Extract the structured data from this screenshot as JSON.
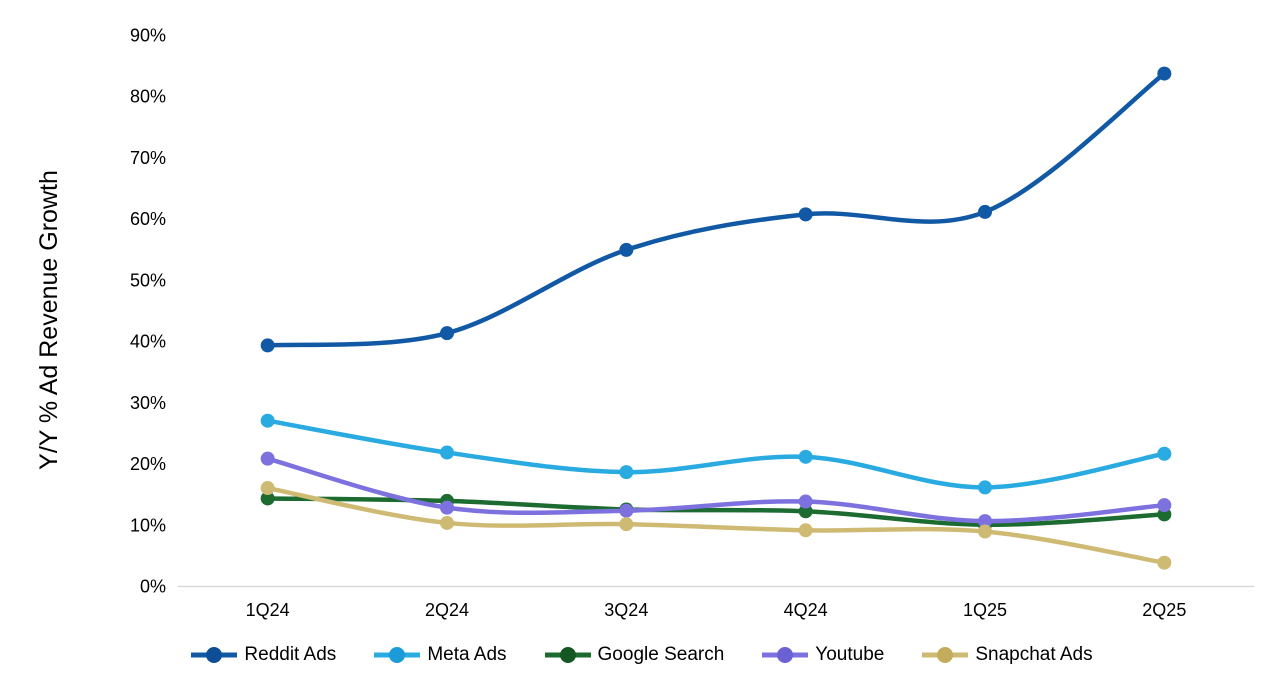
{
  "y_axis": {
    "label": "Y/Y % Ad Revenue Growth",
    "tick_labels": [
      "0%",
      "10%",
      "20%",
      "30%",
      "40%",
      "50%",
      "60%",
      "70%",
      "80%",
      "90%"
    ]
  },
  "chart_data": {
    "type": "line",
    "smooth": true,
    "title": "",
    "xlabel": "",
    "ylabel": "Y/Y % Ad Revenue Growth",
    "categories": [
      "1Q24",
      "2Q24",
      "3Q24",
      "4Q24",
      "1Q25",
      "2Q25"
    ],
    "series": [
      {
        "name": "Reddit Ads",
        "color": "#1159A5",
        "dot_color": "#0E4E96",
        "values": [
          39.3,
          41.3,
          54.9,
          60.7,
          61.1,
          83.7
        ]
      },
      {
        "name": "Meta Ads",
        "color": "#29ABE2",
        "dot_color": "#1B9CD8",
        "values": [
          27.0,
          21.8,
          18.6,
          21.1,
          16.1,
          21.6
        ]
      },
      {
        "name": "Google Search",
        "color": "#1C6B30",
        "dot_color": "#145722",
        "values": [
          14.3,
          13.9,
          12.5,
          12.2,
          10.0,
          11.7
        ]
      },
      {
        "name": "Youtube",
        "color": "#7C71DE",
        "dot_color": "#6C60D5",
        "values": [
          20.8,
          12.8,
          12.3,
          13.8,
          10.6,
          13.2
        ]
      },
      {
        "name": "Snapchat Ads",
        "color": "#CFBA74",
        "dot_color": "#C3AC5C",
        "values": [
          16.0,
          10.3,
          10.1,
          9.1,
          8.9,
          3.8
        ]
      }
    ],
    "ylim": [
      0,
      90
    ],
    "ytick_step": 10,
    "grid": false,
    "legend_position": "bottom",
    "axis_line_color": "#D9D9D9",
    "background_color": "#FFFFFF",
    "text_color": "#000000"
  }
}
